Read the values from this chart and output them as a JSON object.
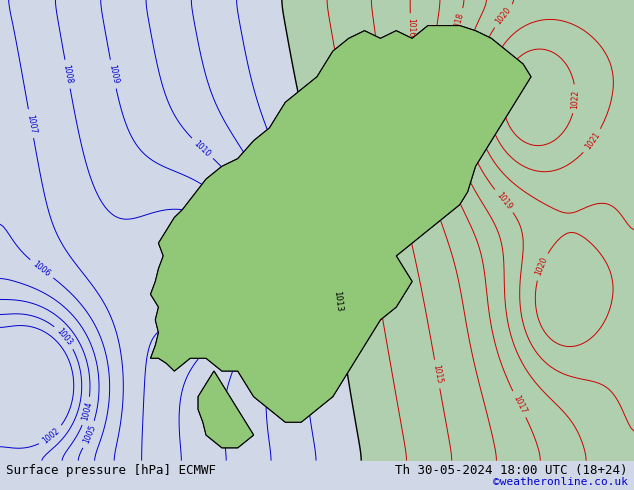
{
  "title_left": "Surface pressure [hPa] ECMWF",
  "title_right": "Th 30-05-2024 18:00 UTC (18+24)",
  "credit": "©weatheronline.co.uk",
  "bg_color": "#d0d8e8",
  "land_green_color": "#90c878",
  "land_gray_color": "#c8c8c8",
  "sea_color": "#d0d8e8",
  "contour_blue_color": "#0000cc",
  "contour_red_color": "#cc0000",
  "contour_black_color": "#000000",
  "bottom_bar_color": "#d0d8e8",
  "bottom_text_color": "#000000",
  "credit_color": "#0000cc",
  "font_size_bottom": 9,
  "font_size_labels": 7,
  "fig_width": 6.34,
  "fig_height": 4.9,
  "dpi": 100
}
